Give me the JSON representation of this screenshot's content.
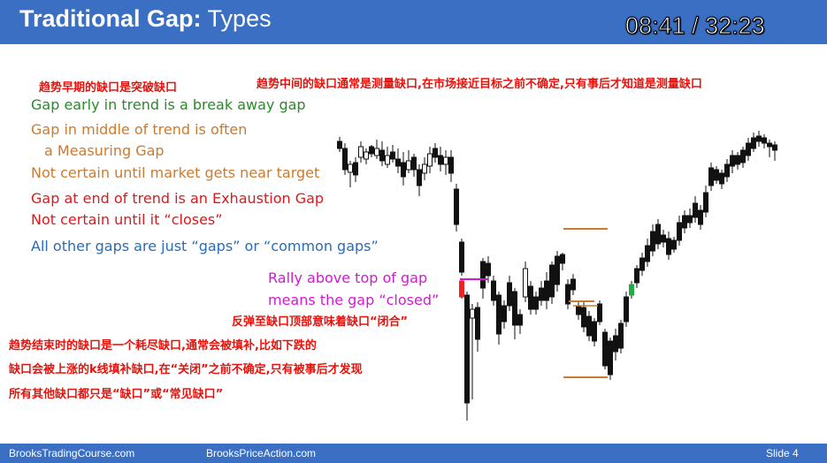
{
  "header": {
    "title_bold": "Traditional Gap:",
    "title_light": " Types",
    "timer": "08:41 / 32:23"
  },
  "annotations": {
    "cn_breakaway": "趋势早期的缺口是突破缺口",
    "cn_measuring": "趋势中间的缺口通常是测量缺口,在市场接近目标之前不确定,只有事后才知道是测量缺口",
    "en_breakaway": "Gap early in trend is a break away gap",
    "en_measuring_1": "Gap in middle of trend is often",
    "en_measuring_2": "a Measuring Gap",
    "en_measuring_3": "Not certain until market gets near target",
    "en_exhaustion_1": "Gap at end of trend is an Exhaustion Gap",
    "en_exhaustion_2": "Not certain until it “closes”",
    "en_common": "All other gaps are just “gaps” or “common gaps”",
    "en_rally_1": "Rally above top of gap",
    "en_rally_2": "means the gap “closed”",
    "cn_rally": "反弹至缺口顶部意味着缺口“闭合”",
    "cn_exhaustion_1": "趋势结束时的缺口是一个耗尽缺口,通常会被填补,比如下跌的",
    "cn_exhaustion_2": "缺口会被上涨的k线填补缺口,在“关闭”之前不确定,只有被事后才发现",
    "cn_common": "所有其他缺口都只是“缺口”或“常见缺口”"
  },
  "footer": {
    "left": "BrooksTradingCourse.com",
    "center": "BrooksPriceAction.com",
    "slide": "Slide  4"
  },
  "colors": {
    "header_bg": "#3a6fc4",
    "cn_red": "#e8120c",
    "green": "#2a8a2a",
    "orange": "#cc7a2e",
    "red": "#e0181a",
    "blue": "#2a6cb6",
    "magenta": "#d21ad2",
    "bull_gap_bar": "#22aa44",
    "bear_gap_bar": "#ee2222"
  }
}
